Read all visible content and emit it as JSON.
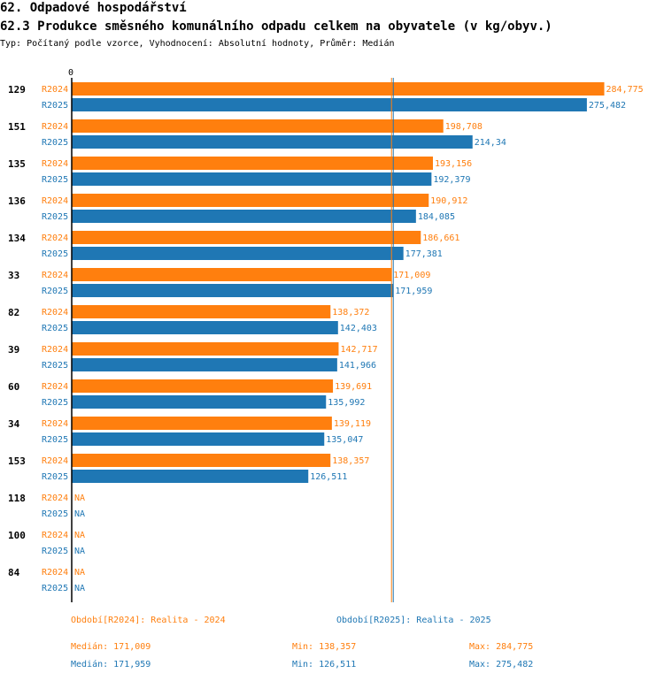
{
  "header": {
    "section": "62. Odpadové hospodářství",
    "title": "62.3 Produkce směsného komunálního odpadu celkem na obyvatele (v kg/obyv.)",
    "subtitle": "Typ: Počítaný podle vzorce, Vyhodnocení: Absolutní hodnoty, Průměr: Medián"
  },
  "colors": {
    "R2024": "#ff7f0e",
    "R2025": "#1f77b4"
  },
  "chart_data": {
    "type": "bar",
    "orientation": "horizontal",
    "axis_zero_label": "0",
    "xlim": [
      0,
      287
    ],
    "categories": [
      "129",
      "151",
      "135",
      "136",
      "134",
      "33",
      "82",
      "39",
      "60",
      "34",
      "153",
      "118",
      "100",
      "84"
    ],
    "series": [
      {
        "name": "R2024",
        "values": [
          284.775,
          198.708,
          193.156,
          190.912,
          186.661,
          171.009,
          138.372,
          142.717,
          139.691,
          139.119,
          138.357,
          null,
          null,
          null
        ],
        "labels": [
          "284,775",
          "198,708",
          "193,156",
          "190,912",
          "186,661",
          "171,009",
          "138,372",
          "142,717",
          "139,691",
          "139,119",
          "138,357",
          "NA",
          "NA",
          "NA"
        ]
      },
      {
        "name": "R2025",
        "values": [
          275.482,
          214.34,
          192.379,
          184.085,
          177.381,
          171.959,
          142.403,
          141.966,
          135.992,
          135.047,
          126.511,
          null,
          null,
          null
        ],
        "labels": [
          "275,482",
          "214,34",
          "192,379",
          "184,085",
          "177,381",
          "171,959",
          "142,403",
          "141,966",
          "135,992",
          "135,047",
          "126,511",
          "NA",
          "NA",
          "NA"
        ]
      }
    ],
    "median_lines": [
      {
        "series": "R2024",
        "value": 171.009
      },
      {
        "series": "R2025",
        "value": 171.959
      }
    ]
  },
  "legend": {
    "r2024_period": "Období[R2024]: Realita - 2024",
    "r2025_period": "Období[R2025]: Realita - 2025",
    "r2024_median": "Medián: 171,009",
    "r2024_min": "Min: 138,357",
    "r2024_max": "Max: 284,775",
    "r2025_median": "Medián: 171,959",
    "r2025_min": "Min: 126,511",
    "r2025_max": "Max: 275,482"
  }
}
